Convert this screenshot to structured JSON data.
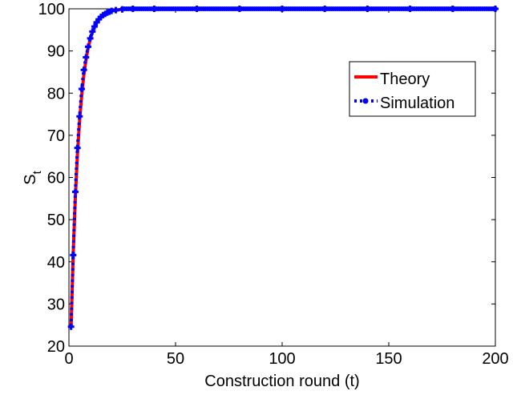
{
  "chart_data": {
    "type": "line",
    "title": "",
    "xlabel": "Construction round (t)",
    "ylabel": "S",
    "ylabel_subscript": "t",
    "xlim": [
      0,
      200
    ],
    "ylim": [
      20,
      100
    ],
    "xticks": [
      "0",
      "50",
      "100",
      "150",
      "200"
    ],
    "yticks": [
      "20",
      "30",
      "40",
      "50",
      "60",
      "70",
      "80",
      "90",
      "100"
    ],
    "grid": false,
    "legend_position": "upper-right",
    "series": [
      {
        "name": "Theory",
        "color": "#ff0000",
        "style": "solid",
        "x": [
          1,
          2,
          3,
          4,
          5,
          6,
          7,
          8,
          9,
          10,
          11,
          12,
          13,
          14,
          15,
          16,
          17,
          18,
          19,
          20,
          22,
          25,
          30,
          40,
          60,
          80,
          100,
          120,
          140,
          160,
          180,
          200
        ],
        "y": [
          24.5,
          41.9,
          55.2,
          65.5,
          73.5,
          79.6,
          84.3,
          87.9,
          90.7,
          92.8,
          94.5,
          95.7,
          96.7,
          97.5,
          98.1,
          98.5,
          98.8,
          99.1,
          99.3,
          99.5,
          99.7,
          99.85,
          100,
          100,
          100,
          100,
          100,
          100,
          100,
          100,
          100,
          100
        ]
      },
      {
        "name": "Simulation",
        "color": "#0000ff",
        "style": "dotted-markers",
        "x": [
          1,
          2,
          3,
          4,
          5,
          6,
          7,
          8,
          9,
          10,
          11,
          12,
          13,
          14,
          15,
          16,
          17,
          18,
          19,
          20,
          22,
          25,
          30,
          40,
          60,
          80,
          100,
          120,
          140,
          160,
          180,
          200
        ],
        "y": [
          24.6,
          41.6,
          56.6,
          67.0,
          74.5,
          81.0,
          85.5,
          88.5,
          91.0,
          93.0,
          94.6,
          95.8,
          96.8,
          97.5,
          98.1,
          98.5,
          98.8,
          99.1,
          99.3,
          99.5,
          99.7,
          99.85,
          100,
          100,
          100,
          100,
          100,
          100,
          100,
          100,
          100,
          100
        ]
      }
    ]
  }
}
